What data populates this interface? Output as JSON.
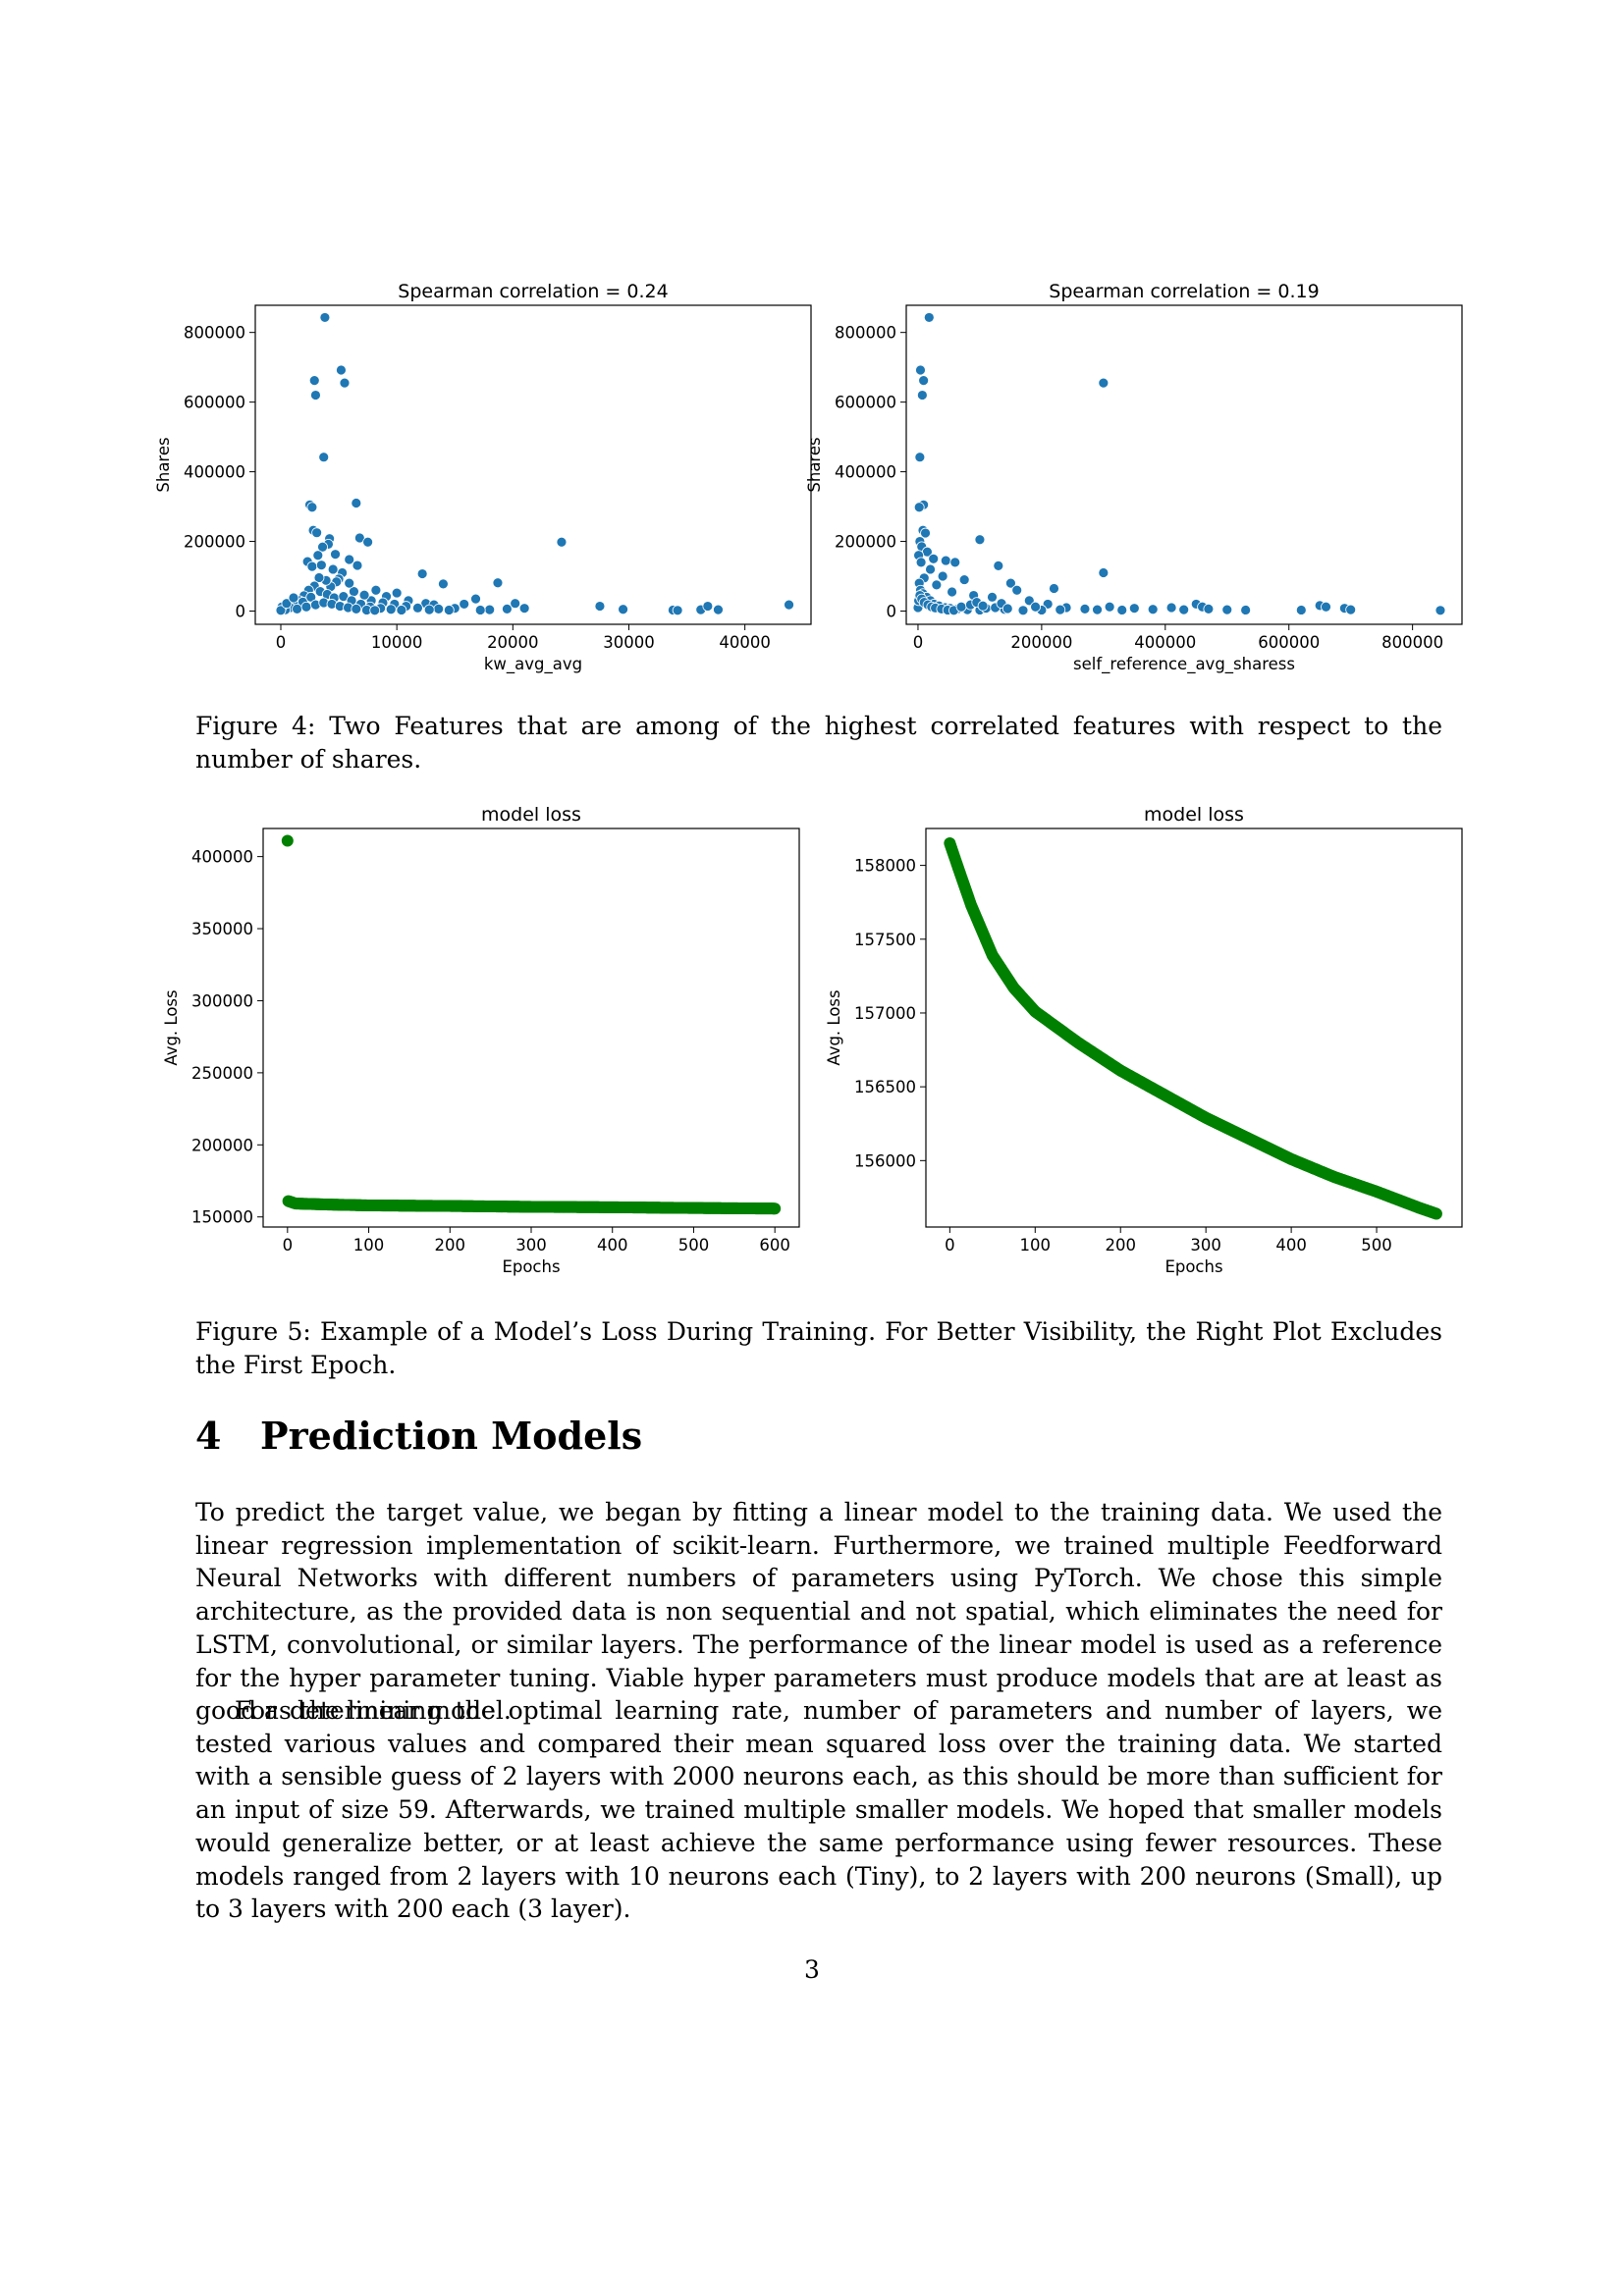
{
  "figure4": {
    "caption": "Figure 4: Two Features that are among of the highest correlated features with respect to the number of shares."
  },
  "figure5": {
    "caption": "Figure 5: Example of a Model’s Loss During Training. For Better Visibility, the Right Plot Excludes the First Epoch."
  },
  "section": {
    "number": "4",
    "title": "Prediction Models"
  },
  "paragraphs": [
    "To predict the target value, we began by fitting a linear model to the training data. We used the linear regression implementation of scikit-learn. Furthermore, we trained multiple Feedforward Neural Networks with different numbers of parameters using PyTorch. We chose this simple architecture, as the provided data is non sequential and not spatial, which eliminates the need for LSTM, convolutional, or similar layers. The performance of the linear model is used as a reference for the hyper parameter tuning. Viable hyper parameters must produce models that are at least as good as the linear model.",
    "For determining the optimal learning rate, number of parameters and number of layers, we tested various values and compared their mean squared loss over the training data. We started with a sensible guess of 2 layers with 2000 neurons each, as this should be more than sufficient for an input of size 59. Afterwards, we trained multiple smaller models. We hoped that smaller models would generalize better, or at least achieve the same performance using fewer resources. These models ranged from 2 layers with 10 neurons each (Tiny), to 2 layers with 200 neurons (Small), up to 3 layers with 200 each (3 layer)."
  ],
  "page_number": "3",
  "chart_data": [
    {
      "type": "scatter",
      "title": "Spearman correlation = 0.24",
      "xlabel": "kw_avg_avg",
      "ylabel": "Shares",
      "xlim": [
        -2200,
        45700
      ],
      "ylim": [
        -38000,
        878000
      ],
      "xticks": [
        0,
        10000,
        20000,
        30000,
        40000
      ],
      "yticks": [
        0,
        200000,
        400000,
        600000,
        800000
      ],
      "color": "#1f77b4",
      "points": [
        [
          3800,
          843000
        ],
        [
          5200,
          692000
        ],
        [
          2900,
          662000
        ],
        [
          5500,
          655000
        ],
        [
          3000,
          620000
        ],
        [
          3700,
          442000
        ],
        [
          2500,
          305000
        ],
        [
          6500,
          310000
        ],
        [
          2700,
          298000
        ],
        [
          2800,
          232000
        ],
        [
          3100,
          225000
        ],
        [
          4200,
          208000
        ],
        [
          4100,
          192000
        ],
        [
          3600,
          184000
        ],
        [
          6800,
          210000
        ],
        [
          7500,
          198000
        ],
        [
          24200,
          198000
        ],
        [
          3200,
          160000
        ],
        [
          4700,
          163000
        ],
        [
          2300,
          142000
        ],
        [
          5900,
          148000
        ],
        [
          6600,
          131000
        ],
        [
          2700,
          128000
        ],
        [
          3500,
          132000
        ],
        [
          4500,
          120000
        ],
        [
          5300,
          110000
        ],
        [
          12200,
          107000
        ],
        [
          14000,
          78000
        ],
        [
          18700,
          81000
        ],
        [
          10000,
          52000
        ],
        [
          8200,
          60000
        ],
        [
          9100,
          42000
        ],
        [
          11000,
          30000
        ],
        [
          12500,
          22000
        ],
        [
          13200,
          18000
        ],
        [
          15800,
          20000
        ],
        [
          16800,
          35000
        ],
        [
          20200,
          22000
        ],
        [
          21000,
          8000
        ],
        [
          27500,
          14000
        ],
        [
          29500,
          5000
        ],
        [
          33800,
          3000
        ],
        [
          34200,
          2000
        ],
        [
          36200,
          4000
        ],
        [
          36800,
          14000
        ],
        [
          37700,
          4000
        ],
        [
          43800,
          18000
        ],
        [
          19500,
          6000
        ],
        [
          18000,
          4000
        ],
        [
          17200,
          3000
        ],
        [
          15000,
          8000
        ],
        [
          14500,
          3000
        ],
        [
          13600,
          6000
        ],
        [
          12800,
          4000
        ],
        [
          11800,
          9000
        ],
        [
          10800,
          14000
        ],
        [
          9800,
          20000
        ],
        [
          8800,
          24000
        ],
        [
          7800,
          30000
        ],
        [
          7200,
          46000
        ],
        [
          6300,
          56000
        ],
        [
          5900,
          80000
        ],
        [
          5000,
          92000
        ],
        [
          4800,
          84000
        ],
        [
          4300,
          70000
        ],
        [
          3900,
          88000
        ],
        [
          3300,
          96000
        ],
        [
          2900,
          72000
        ],
        [
          2400,
          60000
        ],
        [
          2000,
          44000
        ],
        [
          1600,
          30000
        ],
        [
          1200,
          18000
        ],
        [
          800,
          10000
        ],
        [
          400,
          4000
        ],
        [
          100,
          12000
        ],
        [
          0,
          2000
        ],
        [
          500,
          22000
        ],
        [
          1100,
          38000
        ],
        [
          1900,
          26000
        ],
        [
          2600,
          40000
        ],
        [
          3400,
          56000
        ],
        [
          4000,
          48000
        ],
        [
          4600,
          38000
        ],
        [
          5400,
          42000
        ],
        [
          6100,
          30000
        ],
        [
          6900,
          20000
        ],
        [
          7700,
          12000
        ],
        [
          8600,
          8000
        ],
        [
          9500,
          5000
        ],
        [
          10400,
          3000
        ],
        [
          1400,
          6000
        ],
        [
          2200,
          12000
        ],
        [
          3000,
          18000
        ],
        [
          3700,
          24000
        ],
        [
          4400,
          20000
        ],
        [
          5100,
          14000
        ],
        [
          5800,
          10000
        ],
        [
          6500,
          6000
        ],
        [
          7400,
          3000
        ],
        [
          8100,
          2000
        ]
      ]
    },
    {
      "type": "scatter",
      "title": "Spearman correlation = 0.19",
      "xlabel": "self_reference_avg_sharess",
      "ylabel": "Shares",
      "xlim": [
        -19000,
        880000
      ],
      "ylim": [
        -38000,
        878000
      ],
      "xticks": [
        0,
        200000,
        400000,
        600000,
        800000
      ],
      "yticks": [
        0,
        200000,
        400000,
        600000,
        800000
      ],
      "color": "#1f77b4",
      "points": [
        [
          18000,
          843000
        ],
        [
          4000,
          692000
        ],
        [
          9000,
          662000
        ],
        [
          300000,
          655000
        ],
        [
          7000,
          620000
        ],
        [
          3000,
          442000
        ],
        [
          9000,
          305000
        ],
        [
          2000,
          298000
        ],
        [
          8000,
          232000
        ],
        [
          12000,
          224000
        ],
        [
          100000,
          205000
        ],
        [
          3000,
          200000
        ],
        [
          6000,
          185000
        ],
        [
          15000,
          170000
        ],
        [
          1000,
          160000
        ],
        [
          25000,
          150000
        ],
        [
          45000,
          145000
        ],
        [
          5000,
          140000
        ],
        [
          60000,
          140000
        ],
        [
          130000,
          130000
        ],
        [
          300000,
          110000
        ],
        [
          20000,
          120000
        ],
        [
          40000,
          100000
        ],
        [
          75000,
          90000
        ],
        [
          150000,
          80000
        ],
        [
          220000,
          65000
        ],
        [
          160000,
          60000
        ],
        [
          10000,
          95000
        ],
        [
          30000,
          75000
        ],
        [
          55000,
          55000
        ],
        [
          90000,
          45000
        ],
        [
          120000,
          40000
        ],
        [
          180000,
          30000
        ],
        [
          210000,
          20000
        ],
        [
          240000,
          10000
        ],
        [
          270000,
          6000
        ],
        [
          290000,
          4000
        ],
        [
          310000,
          12000
        ],
        [
          330000,
          3000
        ],
        [
          350000,
          8000
        ],
        [
          380000,
          5000
        ],
        [
          410000,
          10000
        ],
        [
          430000,
          4000
        ],
        [
          450000,
          20000
        ],
        [
          460000,
          12000
        ],
        [
          470000,
          6000
        ],
        [
          500000,
          4000
        ],
        [
          530000,
          3000
        ],
        [
          620000,
          3000
        ],
        [
          650000,
          16000
        ],
        [
          660000,
          12000
        ],
        [
          690000,
          8000
        ],
        [
          700000,
          4000
        ],
        [
          845000,
          2000
        ],
        [
          2000,
          80000
        ],
        [
          4000,
          60000
        ],
        [
          8000,
          50000
        ],
        [
          14000,
          40000
        ],
        [
          20000,
          30000
        ],
        [
          26000,
          20000
        ],
        [
          34000,
          15000
        ],
        [
          44000,
          10000
        ],
        [
          52000,
          8000
        ],
        [
          64000,
          6000
        ],
        [
          80000,
          4000
        ],
        [
          100000,
          3000
        ],
        [
          110000,
          8000
        ],
        [
          140000,
          5000
        ],
        [
          170000,
          2000
        ],
        [
          200000,
          3000
        ],
        [
          0,
          10000
        ],
        [
          1000,
          30000
        ],
        [
          3000,
          45000
        ],
        [
          6000,
          35000
        ],
        [
          10000,
          25000
        ],
        [
          16000,
          18000
        ],
        [
          22000,
          12000
        ],
        [
          28000,
          9000
        ],
        [
          38000,
          6000
        ],
        [
          48000,
          3000
        ],
        [
          58000,
          2000
        ],
        [
          70000,
          12000
        ],
        [
          85000,
          18000
        ],
        [
          95000,
          25000
        ],
        [
          105000,
          15000
        ],
        [
          125000,
          10000
        ],
        [
          135000,
          22000
        ],
        [
          145000,
          7000
        ],
        [
          190000,
          12000
        ],
        [
          230000,
          4000
        ]
      ]
    },
    {
      "type": "scatter",
      "title": "model loss",
      "xlabel": "Epochs",
      "ylabel": "Avg. Loss",
      "xlim": [
        -30,
        630
      ],
      "ylim": [
        143000,
        419500
      ],
      "xticks": [
        0,
        100,
        200,
        300,
        400,
        500,
        600
      ],
      "yticks": [
        150000,
        200000,
        250000,
        300000,
        350000,
        400000
      ],
      "color": "#008000",
      "first_point": [
        0,
        411000
      ],
      "curve_knots": [
        [
          1,
          161000
        ],
        [
          10,
          159300
        ],
        [
          50,
          158600
        ],
        [
          100,
          158000
        ],
        [
          200,
          157600
        ],
        [
          300,
          157000
        ],
        [
          400,
          156700
        ],
        [
          500,
          156200
        ],
        [
          600,
          155800
        ]
      ]
    },
    {
      "type": "scatter",
      "title": "model loss",
      "xlabel": "Epochs",
      "ylabel": "Avg. Loss",
      "xlim": [
        -28,
        600
      ],
      "ylim": [
        155550,
        158250
      ],
      "xticks": [
        0,
        100,
        200,
        300,
        400,
        500
      ],
      "yticks": [
        156000,
        156500,
        157000,
        157500,
        158000
      ],
      "color": "#008000",
      "curve_knots": [
        [
          0,
          158150
        ],
        [
          10,
          157980
        ],
        [
          25,
          157730
        ],
        [
          50,
          157390
        ],
        [
          75,
          157170
        ],
        [
          100,
          157010
        ],
        [
          150,
          156800
        ],
        [
          200,
          156610
        ],
        [
          250,
          156450
        ],
        [
          300,
          156290
        ],
        [
          350,
          156150
        ],
        [
          400,
          156010
        ],
        [
          450,
          155890
        ],
        [
          500,
          155790
        ],
        [
          550,
          155680
        ],
        [
          570,
          155640
        ]
      ]
    }
  ]
}
